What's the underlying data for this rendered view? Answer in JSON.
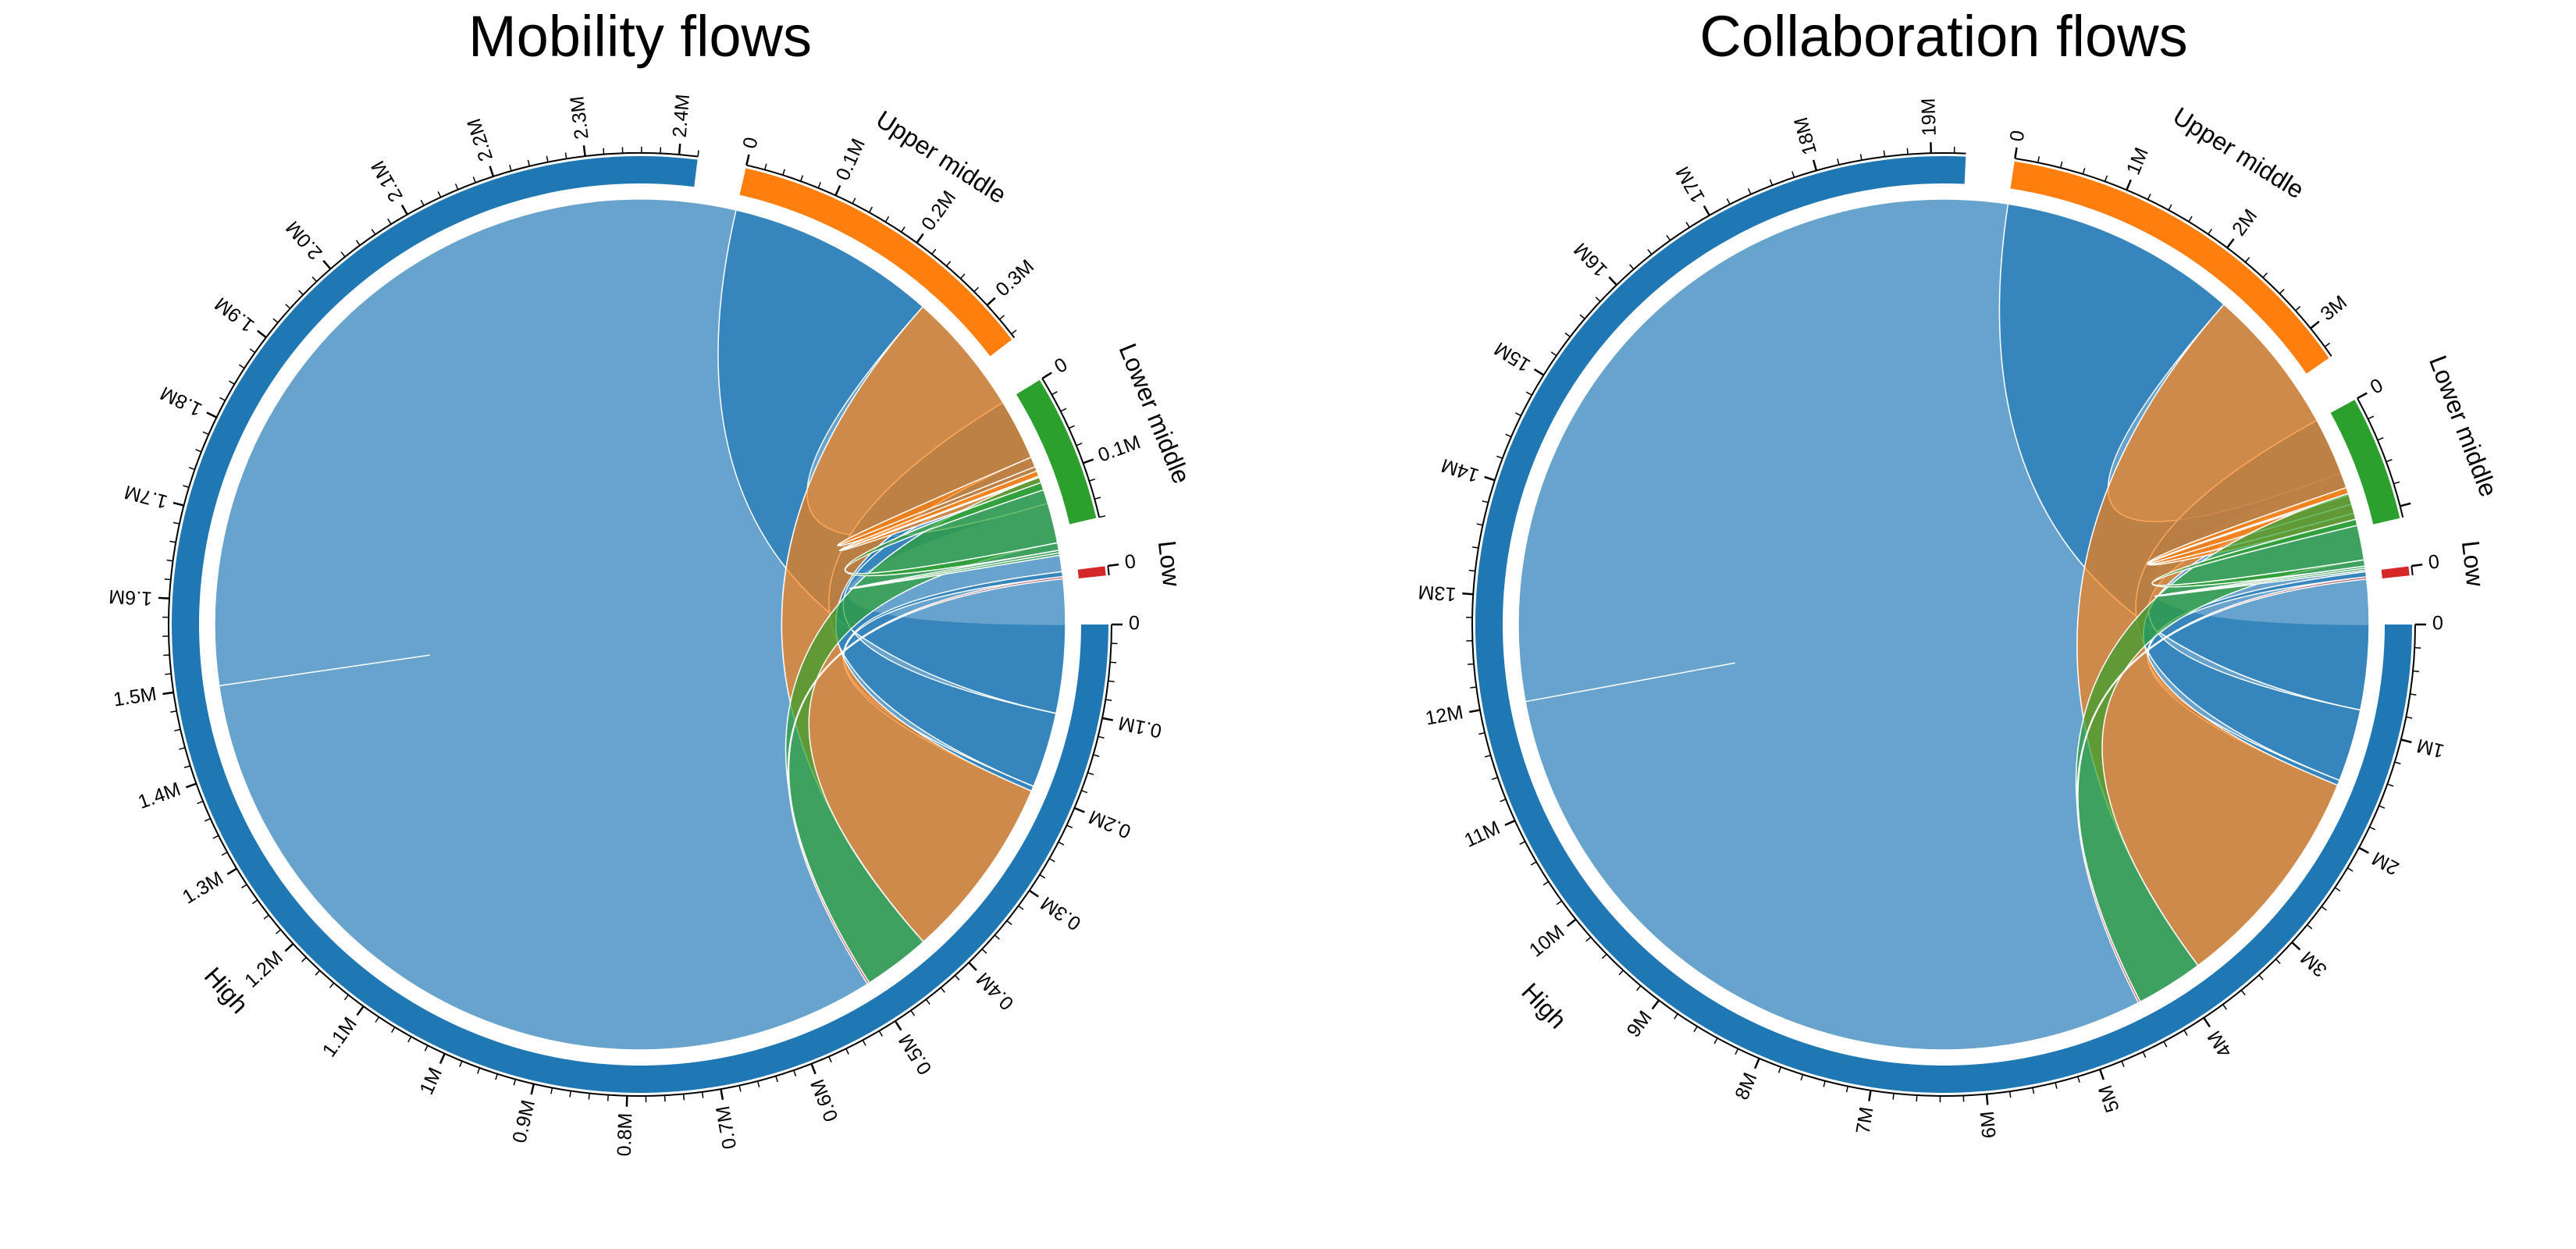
{
  "chart_data": [
    {
      "type": "chord",
      "title": "Mobility flows",
      "sectors": [
        "High",
        "Upper middle",
        "Lower middle",
        "Low"
      ],
      "colors": {
        "High": "#1f77b4",
        "Upper middle": "#ff7f0e",
        "Lower middle": "#2ca02c",
        "Low": "#d62728"
      },
      "sector_totals": [
        2420000,
        345000,
        160000,
        10000
      ],
      "axis_ticks": {
        "High": [
          "0",
          "0.1M",
          "0.2M",
          "0.3M",
          "0.4M",
          "0.5M",
          "0.6M",
          "0.7M",
          "0.8M",
          "0.9M",
          "1M",
          "1.1M",
          "1.2M",
          "1.3M",
          "1.4M",
          "1.5M",
          "1.6M",
          "1.7M",
          "1.8M",
          "1.9M",
          "2.0M",
          "2.1M",
          "2.2M",
          "2.3M",
          "2.4M"
        ],
        "Upper middle": [
          "0",
          "0.1M",
          "0.2M",
          "0.3M"
        ],
        "Lower middle": [
          "0",
          "0.1M"
        ],
        "Low": [
          "0"
        ]
      },
      "flows": [
        {
          "from": "High",
          "to": "High",
          "value": 1500000
        },
        {
          "from": "High",
          "to": "Upper middle",
          "value": 250000
        },
        {
          "from": "High",
          "to": "Lower middle",
          "value": 90000
        },
        {
          "from": "High",
          "to": "Low",
          "value": 6000
        },
        {
          "from": "Upper middle",
          "to": "High",
          "value": 220000
        },
        {
          "from": "Upper middle",
          "to": "Upper middle",
          "value": 12000
        },
        {
          "from": "Upper middle",
          "to": "Lower middle",
          "value": 8000
        },
        {
          "from": "Lower middle",
          "to": "High",
          "value": 80000
        },
        {
          "from": "Lower middle",
          "to": "Upper middle",
          "value": 9000
        },
        {
          "from": "Lower middle",
          "to": "Lower middle",
          "value": 3000
        },
        {
          "from": "Low",
          "to": "High",
          "value": 2500
        }
      ]
    },
    {
      "type": "chord",
      "title": "Collaboration flows",
      "sectors": [
        "High",
        "Upper middle",
        "Lower middle",
        "Low"
      ],
      "colors": {
        "High": "#1f77b4",
        "Upper middle": "#ff7f0e",
        "Lower middle": "#2ca02c",
        "Low": "#d62728"
      },
      "sector_totals": [
        19300000,
        3300000,
        1100000,
        80000
      ],
      "axis_ticks": {
        "High": [
          "0",
          "1M",
          "2M",
          "3M",
          "4M",
          "5M",
          "6M",
          "7M",
          "8M",
          "9M",
          "10M",
          "11M",
          "12M",
          "13M",
          "14M",
          "15M",
          "16M",
          "17M",
          "18M",
          "19M"
        ],
        "Upper middle": [
          "0",
          "1M",
          "2M",
          "3M"
        ],
        "Lower middle": [
          "0"
        ],
        "Low": [
          "0"
        ]
      },
      "flows": [
        {
          "from": "High",
          "to": "High",
          "value": 12000000
        },
        {
          "from": "High",
          "to": "Upper middle",
          "value": 2300000
        },
        {
          "from": "High",
          "to": "Lower middle",
          "value": 700000
        },
        {
          "from": "High",
          "to": "Low",
          "value": 50000
        },
        {
          "from": "Upper middle",
          "to": "High",
          "value": 2200000
        },
        {
          "from": "Upper middle",
          "to": "Upper middle",
          "value": 90000
        },
        {
          "from": "Upper middle",
          "to": "Lower middle",
          "value": 60000
        },
        {
          "from": "Lower middle",
          "to": "High",
          "value": 650000
        },
        {
          "from": "Lower middle",
          "to": "Upper middle",
          "value": 60000
        },
        {
          "from": "Lower middle",
          "to": "Lower middle",
          "value": 20000
        },
        {
          "from": "Low",
          "to": "High",
          "value": 20000
        }
      ]
    }
  ]
}
